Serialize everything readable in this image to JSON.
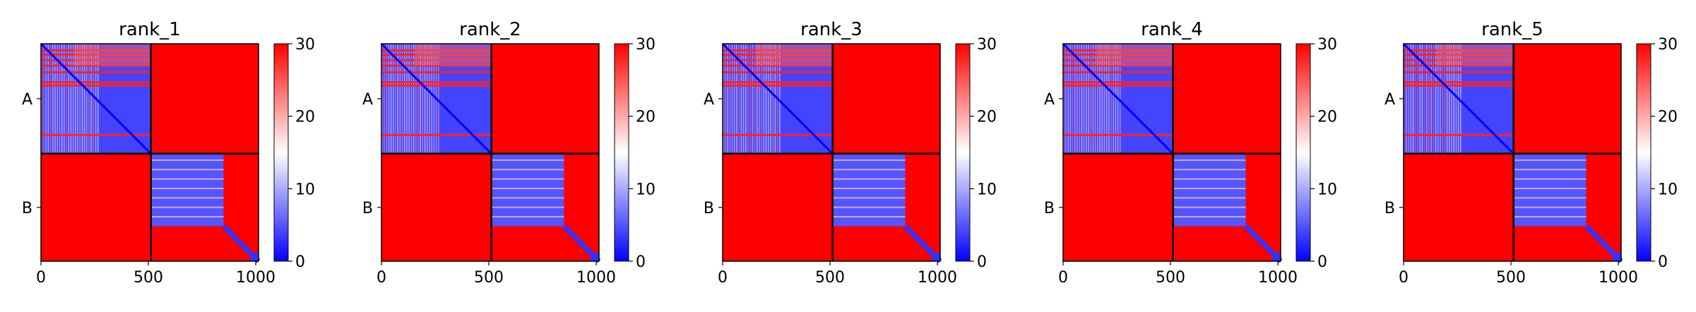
{
  "chart_data": [
    {
      "type": "heatmap",
      "title": "rank_1",
      "xlabel": "",
      "ylabel": "",
      "x_ticks": [
        0,
        500,
        1000
      ],
      "x_range": [
        0,
        1013
      ],
      "y_ticks": [
        "A",
        "B"
      ],
      "chain_boundary": 512,
      "colorbar": {
        "ticks": [
          0,
          10,
          20,
          30
        ],
        "range": [
          0,
          30
        ],
        "colormap": "bwr"
      },
      "blocks": [
        {
          "rows": "A",
          "cols": "A",
          "level": "low",
          "approx_value": 4
        },
        {
          "rows": "A",
          "cols": "B",
          "level": "high",
          "approx_value": 30
        },
        {
          "rows": "B",
          "cols": "A",
          "level": "high",
          "approx_value": 30
        },
        {
          "rows": "B",
          "cols": "B",
          "level": "low",
          "approx_value": 5
        }
      ]
    },
    {
      "type": "heatmap",
      "title": "rank_2",
      "xlabel": "",
      "ylabel": "",
      "x_ticks": [
        0,
        500,
        1000
      ],
      "x_range": [
        0,
        1013
      ],
      "y_ticks": [
        "A",
        "B"
      ],
      "chain_boundary": 512,
      "colorbar": {
        "ticks": [
          0,
          10,
          20,
          30
        ],
        "range": [
          0,
          30
        ],
        "colormap": "bwr"
      },
      "blocks": [
        {
          "rows": "A",
          "cols": "A",
          "level": "low",
          "approx_value": 4
        },
        {
          "rows": "A",
          "cols": "B",
          "level": "high",
          "approx_value": 30
        },
        {
          "rows": "B",
          "cols": "A",
          "level": "high",
          "approx_value": 30
        },
        {
          "rows": "B",
          "cols": "B",
          "level": "low",
          "approx_value": 5
        }
      ]
    },
    {
      "type": "heatmap",
      "title": "rank_3",
      "xlabel": "",
      "ylabel": "",
      "x_ticks": [
        0,
        500,
        1000
      ],
      "x_range": [
        0,
        1013
      ],
      "y_ticks": [
        "A",
        "B"
      ],
      "chain_boundary": 512,
      "colorbar": {
        "ticks": [
          0,
          10,
          20,
          30
        ],
        "range": [
          0,
          30
        ],
        "colormap": "bwr"
      },
      "blocks": [
        {
          "rows": "A",
          "cols": "A",
          "level": "low",
          "approx_value": 4
        },
        {
          "rows": "A",
          "cols": "B",
          "level": "high",
          "approx_value": 30
        },
        {
          "rows": "B",
          "cols": "A",
          "level": "high",
          "approx_value": 30
        },
        {
          "rows": "B",
          "cols": "B",
          "level": "low",
          "approx_value": 5
        }
      ]
    },
    {
      "type": "heatmap",
      "title": "rank_4",
      "xlabel": "",
      "ylabel": "",
      "x_ticks": [
        0,
        500,
        1000
      ],
      "x_range": [
        0,
        1013
      ],
      "y_ticks": [
        "A",
        "B"
      ],
      "chain_boundary": 512,
      "colorbar": {
        "ticks": [
          0,
          10,
          20,
          30
        ],
        "range": [
          0,
          30
        ],
        "colormap": "bwr"
      },
      "blocks": [
        {
          "rows": "A",
          "cols": "A",
          "level": "low",
          "approx_value": 4
        },
        {
          "rows": "A",
          "cols": "B",
          "level": "high",
          "approx_value": 30
        },
        {
          "rows": "B",
          "cols": "A",
          "level": "high",
          "approx_value": 30
        },
        {
          "rows": "B",
          "cols": "B",
          "level": "low",
          "approx_value": 5
        }
      ]
    },
    {
      "type": "heatmap",
      "title": "rank_5",
      "xlabel": "",
      "ylabel": "",
      "x_ticks": [
        0,
        500,
        1000
      ],
      "x_range": [
        0,
        1013
      ],
      "y_ticks": [
        "A",
        "B"
      ],
      "chain_boundary": 512,
      "colorbar": {
        "ticks": [
          0,
          10,
          20,
          30
        ],
        "range": [
          0,
          30
        ],
        "colormap": "bwr"
      },
      "blocks": [
        {
          "rows": "A",
          "cols": "A",
          "level": "low",
          "approx_value": 4
        },
        {
          "rows": "A",
          "cols": "B",
          "level": "high",
          "approx_value": 30
        },
        {
          "rows": "B",
          "cols": "A",
          "level": "high",
          "approx_value": 30
        },
        {
          "rows": "B",
          "cols": "B",
          "level": "low",
          "approx_value": 5
        }
      ]
    }
  ],
  "colors": {
    "high": "#ff0000",
    "mid": "#ffffff",
    "low": "#0000ff"
  }
}
